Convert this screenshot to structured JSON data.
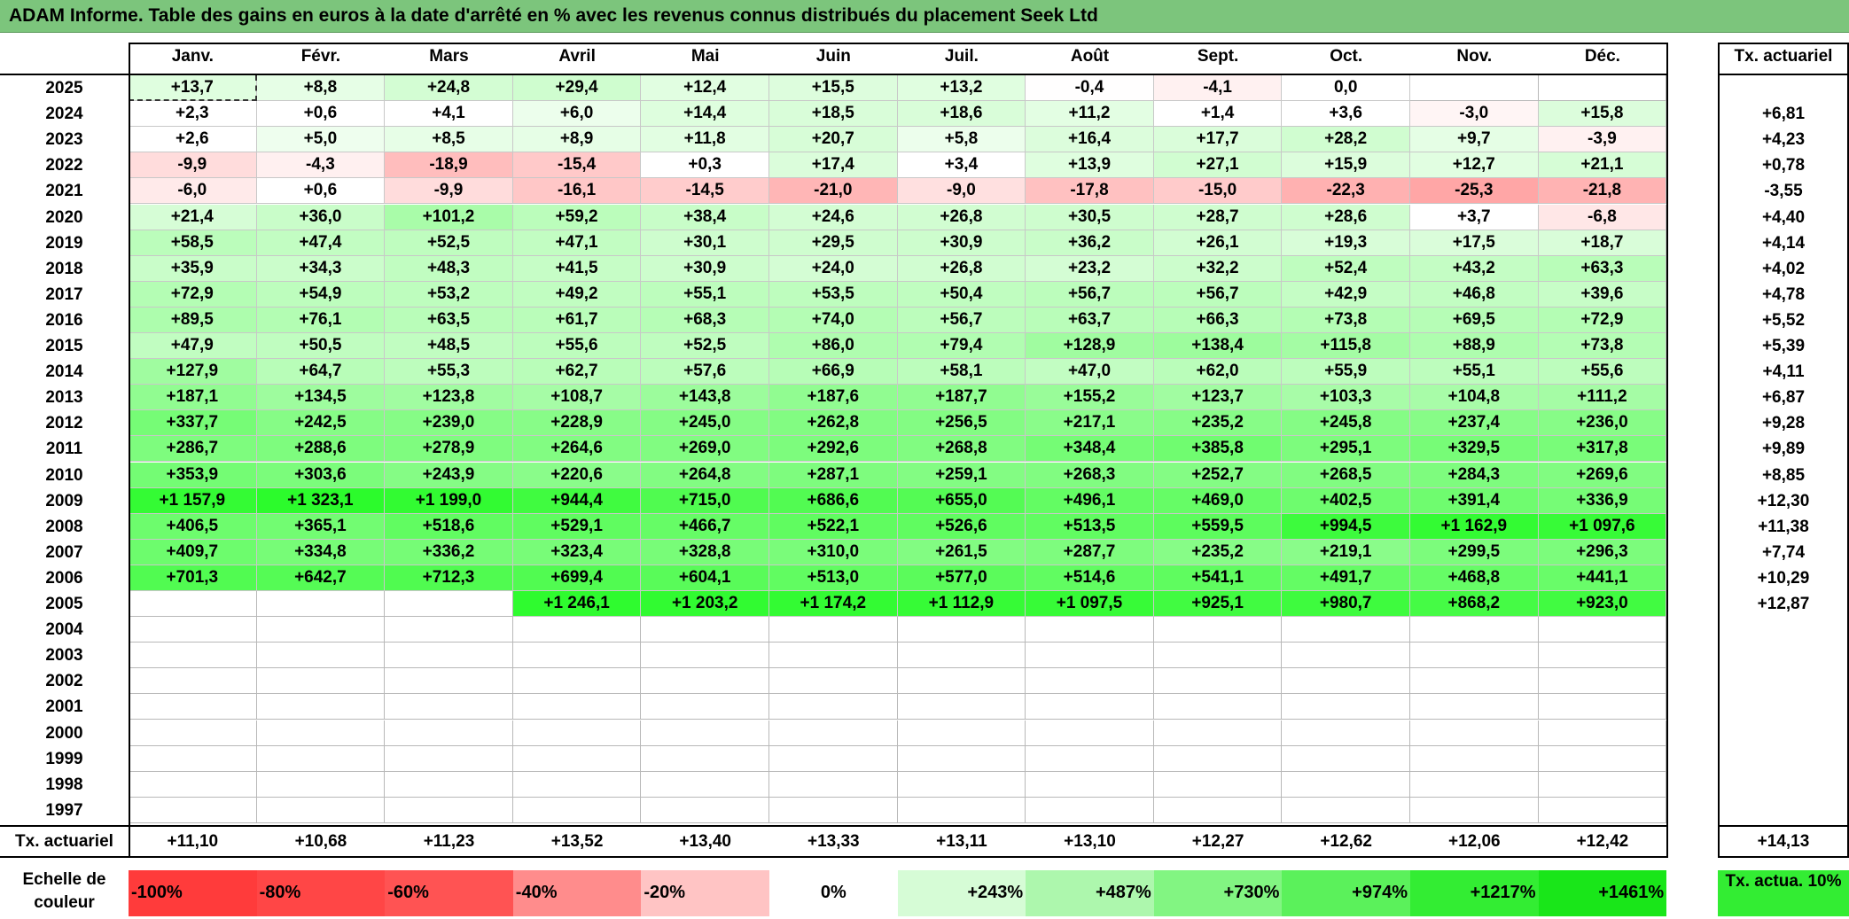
{
  "title": "ADAM Informe. Table des gains en euros à la date d'arrêté en % avec les revenus connus distribués du placement Seek Ltd",
  "months": [
    "Janv.",
    "Févr.",
    "Mars",
    "Avril",
    "Mai",
    "Juin",
    "Juil.",
    "Août",
    "Sept.",
    "Oct.",
    "Nov.",
    "Déc."
  ],
  "rate_header": "Tx. actuariel",
  "rows": [
    {
      "year": "2025",
      "values": [
        "+13,7",
        "+8,8",
        "+24,8",
        "+29,4",
        "+12,4",
        "+15,5",
        "+13,2",
        "-0,4",
        "-4,1",
        "0,0",
        "",
        ""
      ],
      "rate": ""
    },
    {
      "year": "2024",
      "values": [
        "+2,3",
        "+0,6",
        "+4,1",
        "+6,0",
        "+14,4",
        "+18,5",
        "+18,6",
        "+11,2",
        "+1,4",
        "+3,6",
        "-3,0",
        "+15,8"
      ],
      "rate": "+6,81"
    },
    {
      "year": "2023",
      "values": [
        "+2,6",
        "+5,0",
        "+8,5",
        "+8,9",
        "+11,8",
        "+20,7",
        "+5,8",
        "+16,4",
        "+17,7",
        "+28,2",
        "+9,7",
        "-3,9"
      ],
      "rate": "+4,23"
    },
    {
      "year": "2022",
      "values": [
        "-9,9",
        "-4,3",
        "-18,9",
        "-15,4",
        "+0,3",
        "+17,4",
        "+3,4",
        "+13,9",
        "+27,1",
        "+15,9",
        "+12,7",
        "+21,1"
      ],
      "rate": "+0,78"
    },
    {
      "year": "2021",
      "values": [
        "-6,0",
        "+0,6",
        "-9,9",
        "-16,1",
        "-14,5",
        "-21,0",
        "-9,0",
        "-17,8",
        "-15,0",
        "-22,3",
        "-25,3",
        "-21,8"
      ],
      "rate": "-3,55"
    },
    {
      "year": "2020",
      "values": [
        "+21,4",
        "+36,0",
        "+101,2",
        "+59,2",
        "+38,4",
        "+24,6",
        "+26,8",
        "+30,5",
        "+28,7",
        "+28,6",
        "+3,7",
        "-6,8"
      ],
      "rate": "+4,40"
    },
    {
      "year": "2019",
      "values": [
        "+58,5",
        "+47,4",
        "+52,5",
        "+47,1",
        "+30,1",
        "+29,5",
        "+30,9",
        "+36,2",
        "+26,1",
        "+19,3",
        "+17,5",
        "+18,7"
      ],
      "rate": "+4,14"
    },
    {
      "year": "2018",
      "values": [
        "+35,9",
        "+34,3",
        "+48,3",
        "+41,5",
        "+30,9",
        "+24,0",
        "+26,8",
        "+23,2",
        "+32,2",
        "+52,4",
        "+43,2",
        "+63,3"
      ],
      "rate": "+4,02"
    },
    {
      "year": "2017",
      "values": [
        "+72,9",
        "+54,9",
        "+53,2",
        "+49,2",
        "+55,1",
        "+53,5",
        "+50,4",
        "+56,7",
        "+56,7",
        "+42,9",
        "+46,8",
        "+39,6"
      ],
      "rate": "+4,78"
    },
    {
      "year": "2016",
      "values": [
        "+89,5",
        "+76,1",
        "+63,5",
        "+61,7",
        "+68,3",
        "+74,0",
        "+56,7",
        "+63,7",
        "+66,3",
        "+73,8",
        "+69,5",
        "+72,9"
      ],
      "rate": "+5,52"
    },
    {
      "year": "2015",
      "values": [
        "+47,9",
        "+50,5",
        "+48,5",
        "+55,6",
        "+52,5",
        "+86,0",
        "+79,4",
        "+128,9",
        "+138,4",
        "+115,8",
        "+88,9",
        "+73,8"
      ],
      "rate": "+5,39"
    },
    {
      "year": "2014",
      "values": [
        "+127,9",
        "+64,7",
        "+55,3",
        "+62,7",
        "+57,6",
        "+66,9",
        "+58,1",
        "+47,0",
        "+62,0",
        "+55,9",
        "+55,1",
        "+55,6"
      ],
      "rate": "+4,11"
    },
    {
      "year": "2013",
      "values": [
        "+187,1",
        "+134,5",
        "+123,8",
        "+108,7",
        "+143,8",
        "+187,6",
        "+187,7",
        "+155,2",
        "+123,7",
        "+103,3",
        "+104,8",
        "+111,2"
      ],
      "rate": "+6,87"
    },
    {
      "year": "2012",
      "values": [
        "+337,7",
        "+242,5",
        "+239,0",
        "+228,9",
        "+245,0",
        "+262,8",
        "+256,5",
        "+217,1",
        "+235,2",
        "+245,8",
        "+237,4",
        "+236,0"
      ],
      "rate": "+9,28"
    },
    {
      "year": "2011",
      "values": [
        "+286,7",
        "+288,6",
        "+278,9",
        "+264,6",
        "+269,0",
        "+292,6",
        "+268,8",
        "+348,4",
        "+385,8",
        "+295,1",
        "+329,5",
        "+317,8"
      ],
      "rate": "+9,89"
    },
    {
      "year": "2010",
      "values": [
        "+353,9",
        "+303,6",
        "+243,9",
        "+220,6",
        "+264,8",
        "+287,1",
        "+259,1",
        "+268,3",
        "+252,7",
        "+268,5",
        "+284,3",
        "+269,6"
      ],
      "rate": "+8,85"
    },
    {
      "year": "2009",
      "values": [
        "+1 157,9",
        "+1 323,1",
        "+1 199,0",
        "+944,4",
        "+715,0",
        "+686,6",
        "+655,0",
        "+496,1",
        "+469,0",
        "+402,5",
        "+391,4",
        "+336,9"
      ],
      "rate": "+12,30"
    },
    {
      "year": "2008",
      "values": [
        "+406,5",
        "+365,1",
        "+518,6",
        "+529,1",
        "+466,7",
        "+522,1",
        "+526,6",
        "+513,5",
        "+559,5",
        "+994,5",
        "+1 162,9",
        "+1 097,6"
      ],
      "rate": "+11,38"
    },
    {
      "year": "2007",
      "values": [
        "+409,7",
        "+334,8",
        "+336,2",
        "+323,4",
        "+328,8",
        "+310,0",
        "+261,5",
        "+287,7",
        "+235,2",
        "+219,1",
        "+299,5",
        "+296,3"
      ],
      "rate": "+7,74"
    },
    {
      "year": "2006",
      "values": [
        "+701,3",
        "+642,7",
        "+712,3",
        "+699,4",
        "+604,1",
        "+513,0",
        "+577,0",
        "+514,6",
        "+541,1",
        "+491,7",
        "+468,8",
        "+441,1"
      ],
      "rate": "+10,29"
    },
    {
      "year": "2005",
      "values": [
        "",
        "",
        "",
        "+1 246,1",
        "+1 203,2",
        "+1 174,2",
        "+1 112,9",
        "+1 097,5",
        "+925,1",
        "+980,7",
        "+868,2",
        "+923,0"
      ],
      "rate": "+12,87"
    },
    {
      "year": "2004",
      "values": [
        "",
        "",
        "",
        "",
        "",
        "",
        "",
        "",
        "",
        "",
        "",
        ""
      ],
      "rate": ""
    },
    {
      "year": "2003",
      "values": [
        "",
        "",
        "",
        "",
        "",
        "",
        "",
        "",
        "",
        "",
        "",
        ""
      ],
      "rate": ""
    },
    {
      "year": "2002",
      "values": [
        "",
        "",
        "",
        "",
        "",
        "",
        "",
        "",
        "",
        "",
        "",
        ""
      ],
      "rate": ""
    },
    {
      "year": "2001",
      "values": [
        "",
        "",
        "",
        "",
        "",
        "",
        "",
        "",
        "",
        "",
        "",
        ""
      ],
      "rate": ""
    },
    {
      "year": "2000",
      "values": [
        "",
        "",
        "",
        "",
        "",
        "",
        "",
        "",
        "",
        "",
        "",
        ""
      ],
      "rate": ""
    },
    {
      "year": "1999",
      "values": [
        "",
        "",
        "",
        "",
        "",
        "",
        "",
        "",
        "",
        "",
        "",
        ""
      ],
      "rate": ""
    },
    {
      "year": "1998",
      "values": [
        "",
        "",
        "",
        "",
        "",
        "",
        "",
        "",
        "",
        "",
        "",
        ""
      ],
      "rate": ""
    },
    {
      "year": "1997",
      "values": [
        "",
        "",
        "",
        "",
        "",
        "",
        "",
        "",
        "",
        "",
        "",
        ""
      ],
      "rate": ""
    }
  ],
  "footer": {
    "label": "Tx. actuariel",
    "values": [
      "+11,10",
      "+10,68",
      "+11,23",
      "+13,52",
      "+13,40",
      "+13,33",
      "+13,11",
      "+13,10",
      "+12,27",
      "+12,62",
      "+12,06",
      "+12,42"
    ],
    "total": "+14,13"
  },
  "scale": {
    "label": "Echelle de couleur",
    "items": [
      {
        "text": "-100%",
        "color": "#ff3b3b",
        "align": "left"
      },
      {
        "text": "-80%",
        "color": "#ff4646",
        "align": "left"
      },
      {
        "text": "-60%",
        "color": "#ff5353",
        "align": "left"
      },
      {
        "text": "-40%",
        "color": "#ff8c8c",
        "align": "left"
      },
      {
        "text": "-20%",
        "color": "#ffc4c4",
        "align": "left"
      },
      {
        "text": "0%",
        "color": "#ffffff",
        "align": "center"
      },
      {
        "text": "+243%",
        "color": "#d6fcd6",
        "align": "right"
      },
      {
        "text": "+487%",
        "color": "#adf7ad",
        "align": "right"
      },
      {
        "text": "+730%",
        "color": "#82f582",
        "align": "right"
      },
      {
        "text": "+974%",
        "color": "#5bf15b",
        "align": "right"
      },
      {
        "text": "+1217%",
        "color": "#33ed33",
        "align": "right"
      },
      {
        "text": "+1461%",
        "color": "#19e619",
        "align": "right"
      }
    ],
    "rate_box": {
      "text": "Tx. actua. 10%",
      "color": "#33ed33"
    }
  }
}
